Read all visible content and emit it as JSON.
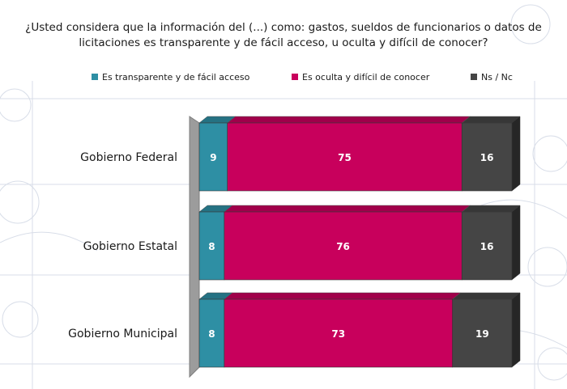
{
  "title": "¿Usted considera que la información del (...) como: gastos, sueldos de funcionarios o datos de licitaciones es transparente y de fácil acceso, u oculta y difícil de conocer?",
  "legend": [
    {
      "label": "Es transparente y de fácil acceso",
      "color": "#2e8fa4"
    },
    {
      "label": "Es oculta y difícil de conocer",
      "color": "#c8005c"
    },
    {
      "label": "Ns / Nc",
      "color": "#454545"
    }
  ],
  "chart_data": {
    "type": "bar",
    "orientation": "horizontal",
    "stacked": true,
    "title": "¿Usted considera que la información del (...) como: gastos, sueldos de funcionarios o datos de licitaciones es transparente y de fácil acceso, u oculta y difícil de conocer?",
    "categories": [
      "Gobierno Federal",
      "Gobierno Estatal",
      "Gobierno Municipal"
    ],
    "series": [
      {
        "name": "Es transparente y de fácil acceso",
        "values": [
          9,
          8,
          8
        ],
        "color": "#2e8fa4"
      },
      {
        "name": "Es oculta y difícil de conocer",
        "values": [
          75,
          76,
          73
        ],
        "color": "#c8005c"
      },
      {
        "name": "Ns / Nc",
        "values": [
          16,
          16,
          19
        ],
        "color": "#454545"
      }
    ],
    "xlim": [
      0,
      100
    ],
    "legend_position": "top",
    "grid": false
  }
}
